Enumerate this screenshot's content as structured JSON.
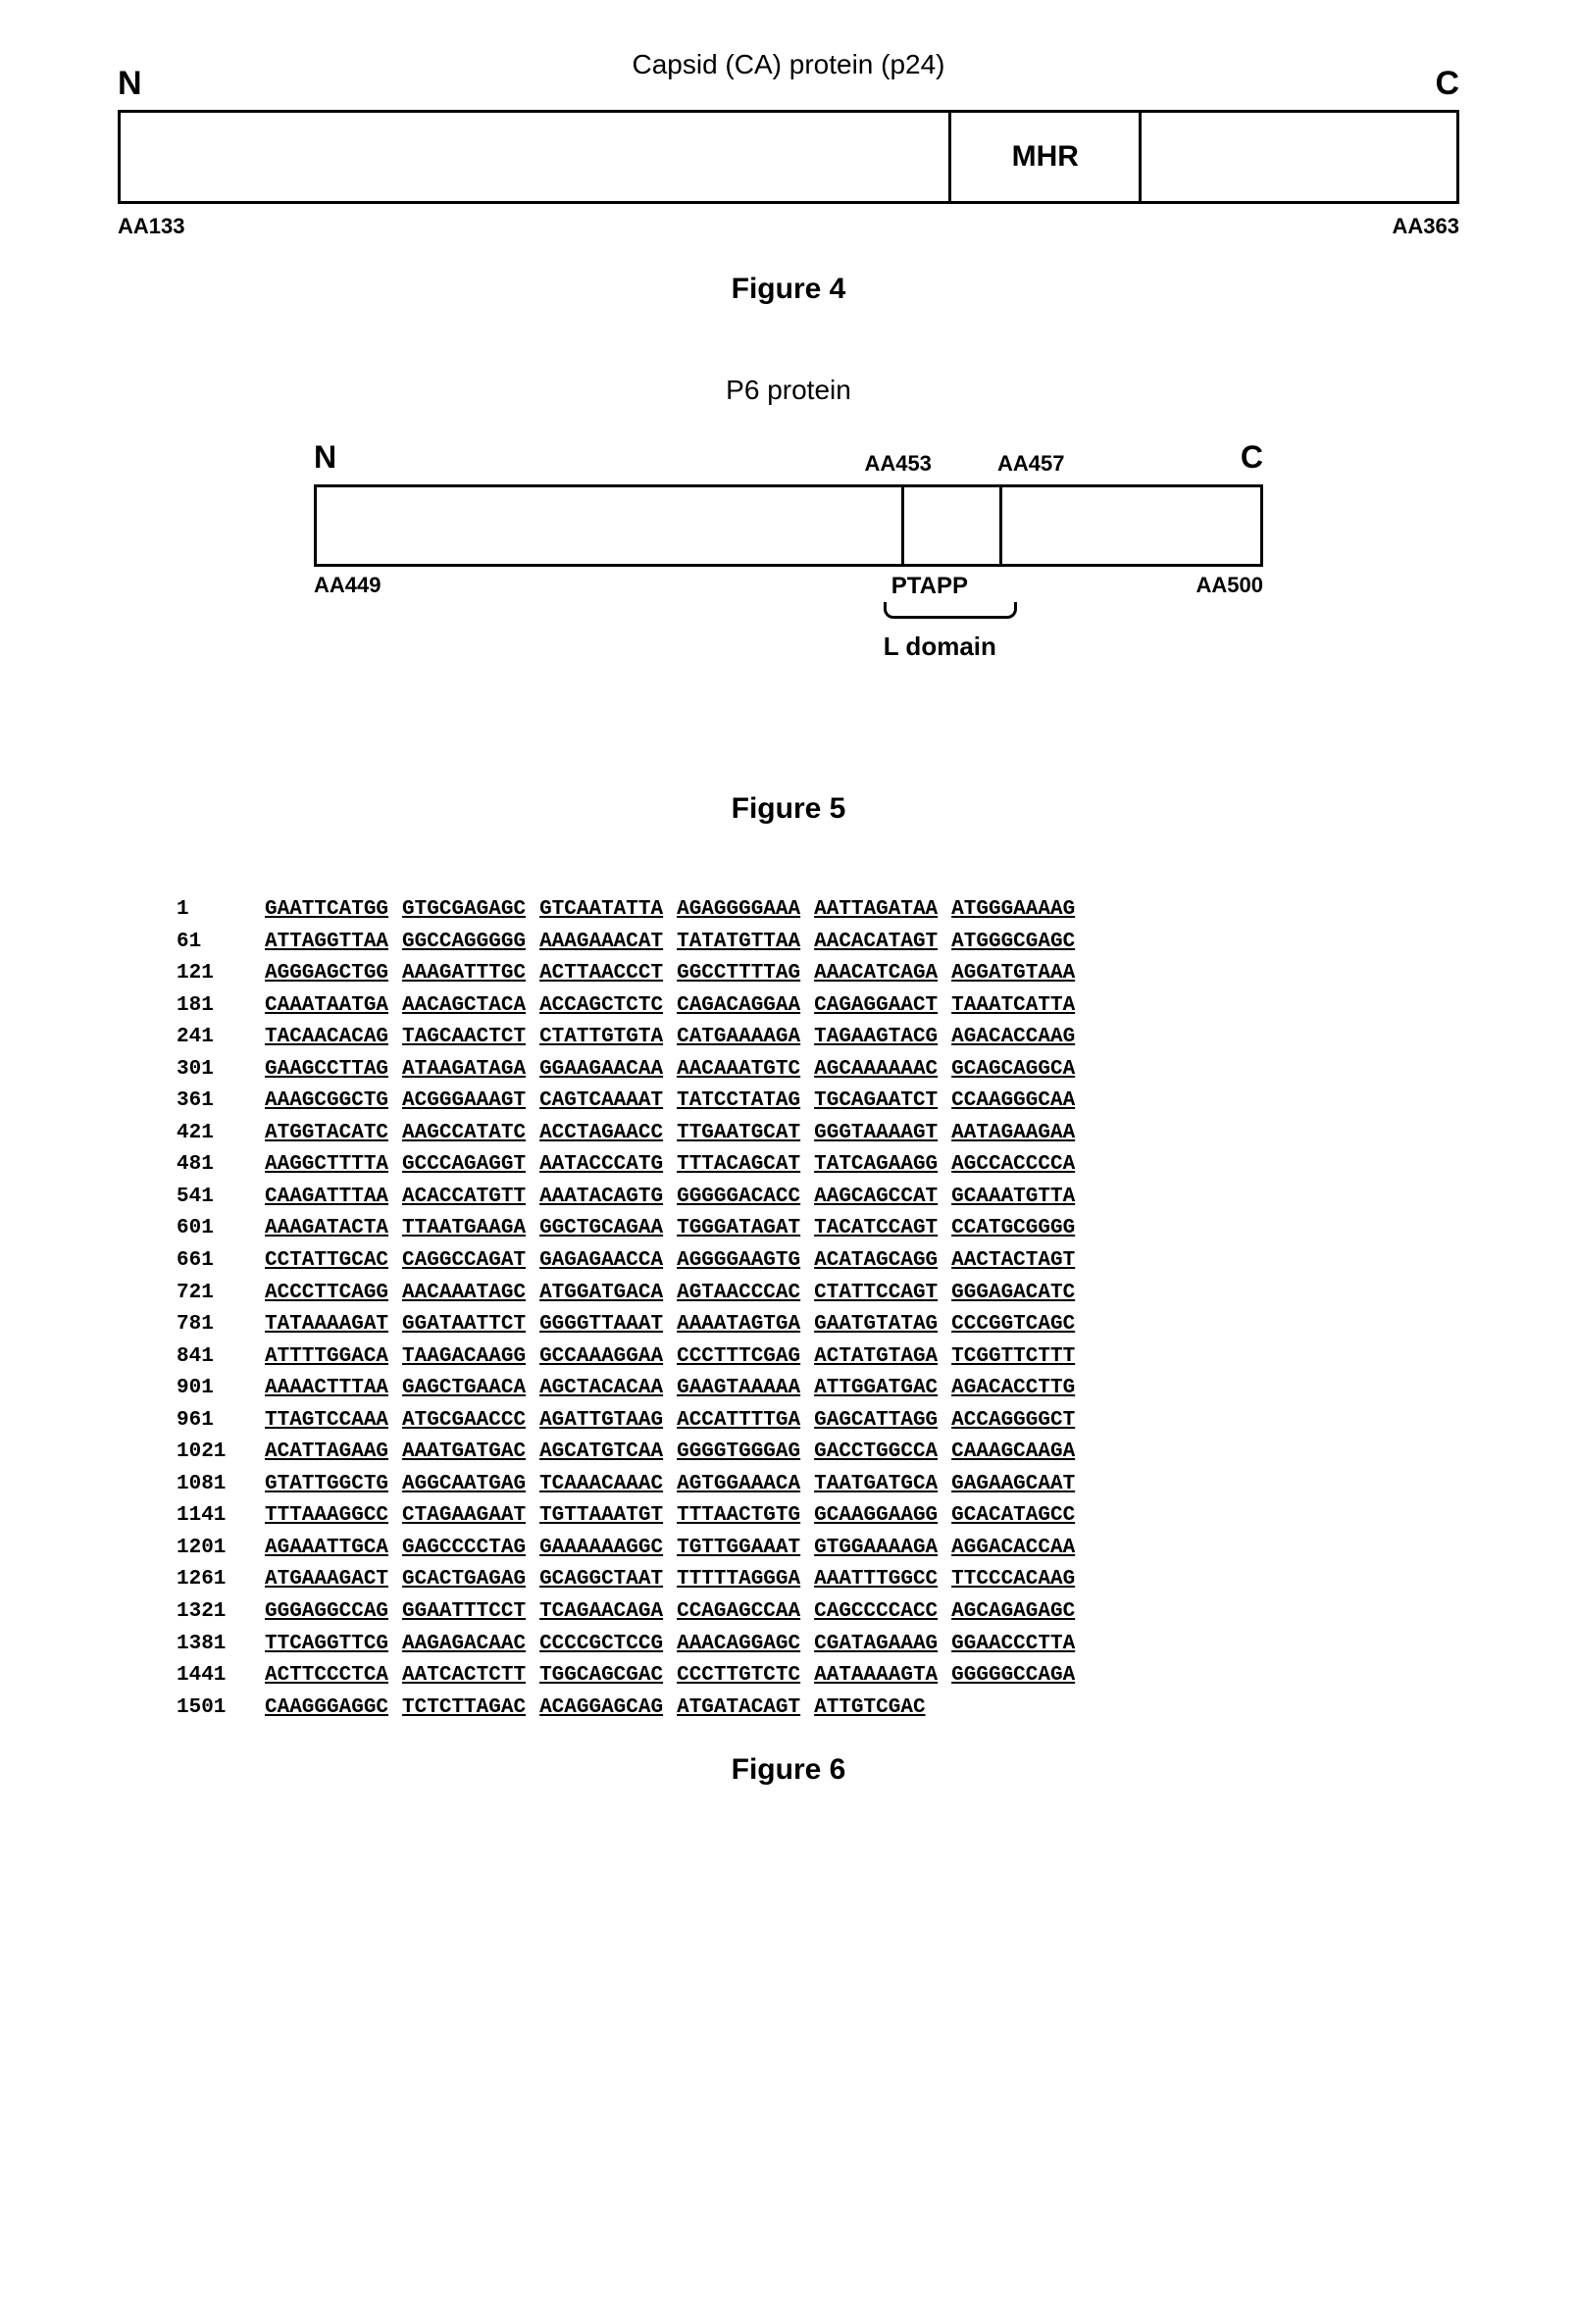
{
  "fig4": {
    "title": "Capsid (CA) protein (p24)",
    "n_label": "N",
    "c_label": "C",
    "mhr_label": "MHR",
    "aa_start": "AA133",
    "aa_end": "AA363",
    "caption": "Figure 4"
  },
  "fig5": {
    "title": "P6 protein",
    "n_label": "N",
    "c_label": "C",
    "aa453": "AA453",
    "aa457": "AA457",
    "aa_start": "AA449",
    "aa_end": "AA500",
    "ptapp": "PTAPP",
    "ldomain": "L domain",
    "caption": "Figure 5"
  },
  "fig6": {
    "caption": "Figure 6",
    "rows": [
      {
        "pos": "1",
        "g": [
          "GAATTCATGG",
          "GTGCGAGAGC",
          "GTCAATATTA",
          "AGAGGGGAAA",
          "AATTAGATAA",
          "ATGGGAAAAG"
        ]
      },
      {
        "pos": "61",
        "g": [
          "ATTAGGTTAA",
          "GGCCAGGGGG",
          "AAAGAAACAT",
          "TATATGTTAA",
          "AACACATAGT",
          "ATGGGCGAGC"
        ]
      },
      {
        "pos": "121",
        "g": [
          "AGGGAGCTGG",
          "AAAGATTTGC",
          "ACTTAACCCT",
          "GGCCTTTTAG",
          "AAACATCAGA",
          "AGGATGTAAA"
        ]
      },
      {
        "pos": "181",
        "g": [
          "CAAATAATGA",
          "AACAGCTACA",
          "ACCAGCTCTC",
          "CAGACAGGAA",
          "CAGAGGAACT",
          "TAAATCATTA"
        ]
      },
      {
        "pos": "241",
        "g": [
          "TACAACACAG",
          "TAGCAACTCT",
          "CTATTGTGTA",
          "CATGAAAAGA",
          "TAGAAGTACG",
          "AGACACCAAG"
        ]
      },
      {
        "pos": "301",
        "g": [
          "GAAGCCTTAG",
          "ATAAGATAGA",
          "GGAAGAACAA",
          "AACAAATGTC",
          "AGCAAAAAAC",
          "GCAGCAGGCA"
        ]
      },
      {
        "pos": "361",
        "g": [
          "AAAGCGGCTG",
          "ACGGGAAAGT",
          "CAGTCAAAAT",
          "TATCCTATAG",
          "TGCAGAATCT",
          "CCAAGGGCAA"
        ]
      },
      {
        "pos": "421",
        "g": [
          "ATGGTACATC",
          "AAGCCATATC",
          "ACCTAGAACC",
          "TTGAATGCAT",
          "GGGTAAAAGT",
          "AATAGAAGAA"
        ]
      },
      {
        "pos": "481",
        "g": [
          "AAGGCTTTTA",
          "GCCCAGAGGT",
          "AATACCCATG",
          "TTTACAGCAT",
          "TATCAGAAGG",
          "AGCCACCCCA"
        ]
      },
      {
        "pos": "541",
        "g": [
          "CAAGATTTAA",
          "ACACCATGTT",
          "AAATACAGTG",
          "GGGGGACACC",
          "AAGCAGCCAT",
          "GCAAATGTTA"
        ]
      },
      {
        "pos": "601",
        "g": [
          "AAAGATACTA",
          "TTAATGAAGA",
          "GGCTGCAGAA",
          "TGGGATAGAT",
          "TACATCCAGT",
          "CCATGCGGGG"
        ]
      },
      {
        "pos": "661",
        "g": [
          "CCTATTGCAC",
          "CAGGCCAGAT",
          "GAGAGAACCA",
          "AGGGGAAGTG",
          "ACATAGCAGG",
          "AACTACTAGT"
        ]
      },
      {
        "pos": "721",
        "g": [
          "ACCCTTCAGG",
          "AACAAATAGC",
          "ATGGATGACA",
          "AGTAACCCAC",
          "CTATTCCAGT",
          "GGGAGACATC"
        ]
      },
      {
        "pos": "781",
        "g": [
          "TATAAAAGAT",
          "GGATAATTCT",
          "GGGGTTAAAT",
          "AAAATAGTGA",
          "GAATGTATAG",
          "CCCGGTCAGC"
        ]
      },
      {
        "pos": "841",
        "g": [
          "ATTTTGGACA",
          "TAAGACAAGG",
          "GCCAAAGGAA",
          "CCCTTTCGAG",
          "ACTATGTAGA",
          "TCGGTTCTTT"
        ]
      },
      {
        "pos": "901",
        "g": [
          "AAAACTTTAA",
          "GAGCTGAACA",
          "AGCTACACAA",
          "GAAGTAAAAA",
          "ATTGGATGAC",
          "AGACACCTTG"
        ]
      },
      {
        "pos": "961",
        "g": [
          "TTAGTCCAAA",
          "ATGCGAACCC",
          "AGATTGTAAG",
          "ACCATTTTGA",
          "GAGCATTAGG",
          "ACCAGGGGCT"
        ]
      },
      {
        "pos": "1021",
        "g": [
          "ACATTAGAAG",
          "AAATGATGAC",
          "AGCATGTCAA",
          "GGGGTGGGAG",
          "GACCTGGCCA",
          "CAAAGCAAGA"
        ]
      },
      {
        "pos": "1081",
        "g": [
          "GTATTGGCTG",
          "AGGCAATGAG",
          "TCAAACAAAC",
          "AGTGGAAACA",
          "TAATGATGCA",
          "GAGAAGCAAT"
        ]
      },
      {
        "pos": "1141",
        "g": [
          "TTTAAAGGCC",
          "CTAGAAGAAT",
          "TGTTAAATGT",
          "TTTAACTGTG",
          "GCAAGGAAGG",
          "GCACATAGCC"
        ]
      },
      {
        "pos": "1201",
        "g": [
          "AGAAATTGCA",
          "GAGCCCCTAG",
          "GAAAAAAGGC",
          "TGTTGGAAAT",
          "GTGGAAAAGA",
          "AGGACACCAA"
        ]
      },
      {
        "pos": "1261",
        "g": [
          "ATGAAAGACT",
          "GCACTGAGAG",
          "GCAGGCTAAT",
          "TTTTTAGGGA",
          "AAATTTGGCC",
          "TTCCCACAAG"
        ]
      },
      {
        "pos": "1321",
        "g": [
          "GGGAGGCCAG",
          "GGAATTTCCT",
          "TCAGAACAGA",
          "CCAGAGCCAA",
          "CAGCCCCACC",
          "AGCAGAGAGC"
        ]
      },
      {
        "pos": "1381",
        "g": [
          "TTCAGGTTCG",
          "AAGAGACAAC",
          "CCCCGCTCCG",
          "AAACAGGAGC",
          "CGATAGAAAG",
          "GGAACCCTTA"
        ]
      },
      {
        "pos": "1441",
        "g": [
          "ACTTCCCTCA",
          "AATCACTCTT",
          "TGGCAGCGAC",
          "CCCTTGTCTC",
          "AATAAAAGTA",
          "GGGGGCCAGA"
        ]
      },
      {
        "pos": "1501",
        "g": [
          "CAAGGGAGGC",
          "TCTCTTAGAC",
          "ACAGGAGCAG",
          "ATGATACAGT",
          "ATTGTCGAC",
          ""
        ]
      }
    ]
  }
}
